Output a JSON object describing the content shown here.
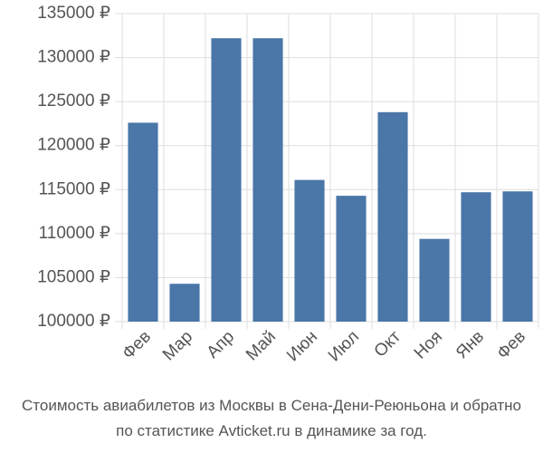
{
  "chart_data": {
    "type": "bar",
    "title_lines": [
      "Стоимость авиабилетов из Москвы в Сена-Дени-Реюньона и обратно",
      "по статистике Avticket.ru в динамике за год."
    ],
    "categories": [
      "Фев",
      "Мар",
      "Апр",
      "Май",
      "Июн",
      "Июл",
      "Окт",
      "Ноя",
      "Янв",
      "Фев"
    ],
    "values": [
      122600,
      104300,
      132200,
      132200,
      116100,
      114300,
      123800,
      109400,
      114700,
      114800
    ],
    "color": "#4a76a8",
    "ylim": [
      100000,
      135000
    ],
    "yticks": [
      {
        "value": 100000,
        "label": "100000 ₽"
      },
      {
        "value": 105000,
        "label": "105000 ₽"
      },
      {
        "value": 110000,
        "label": "110000 ₽"
      },
      {
        "value": 115000,
        "label": "115000 ₽"
      },
      {
        "value": 120000,
        "label": "120000 ₽"
      },
      {
        "value": 125000,
        "label": "125000 ₽"
      },
      {
        "value": 130000,
        "label": "130000 ₽"
      },
      {
        "value": 135000,
        "label": "135000 ₽"
      }
    ],
    "grid": true
  }
}
